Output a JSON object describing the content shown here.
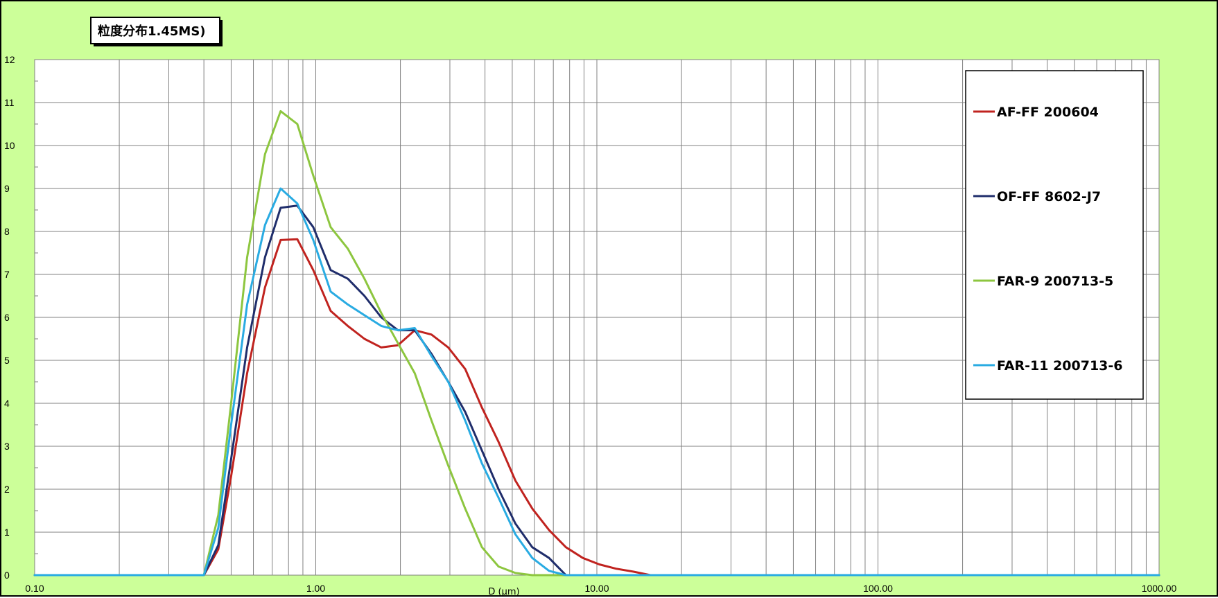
{
  "chart_data": {
    "type": "line",
    "title": "粒度分布1.45MS)",
    "xlabel": "D (μm)",
    "ylabel": "",
    "x_scale": "log",
    "xlim": [
      0.1,
      1000
    ],
    "ylim": [
      0,
      12
    ],
    "x_tick_labels": [
      "0.10",
      "1.00",
      "10.00",
      "100.00",
      "1000.00"
    ],
    "y_tick_labels": [
      "0",
      "1",
      "2",
      "3",
      "4",
      "5",
      "6",
      "7",
      "8",
      "9",
      "10",
      "11",
      "12"
    ],
    "grid": true,
    "legend_position": "top-right",
    "series": [
      {
        "name": "AF-FF 200604",
        "color": "#c0231f",
        "points": [
          [
            0.1,
            0
          ],
          [
            0.4,
            0
          ],
          [
            0.45,
            0.6
          ],
          [
            0.5,
            2.3
          ],
          [
            0.57,
            4.7
          ],
          [
            0.66,
            6.7
          ],
          [
            0.75,
            7.8
          ],
          [
            0.86,
            7.82
          ],
          [
            0.98,
            7.1
          ],
          [
            1.13,
            6.15
          ],
          [
            1.3,
            5.8
          ],
          [
            1.49,
            5.5
          ],
          [
            1.71,
            5.3
          ],
          [
            1.96,
            5.35
          ],
          [
            2.25,
            5.7
          ],
          [
            2.58,
            5.6
          ],
          [
            2.96,
            5.3
          ],
          [
            3.4,
            4.8
          ],
          [
            3.9,
            3.9
          ],
          [
            4.47,
            3.1
          ],
          [
            5.13,
            2.2
          ],
          [
            5.89,
            1.55
          ],
          [
            6.76,
            1.05
          ],
          [
            7.76,
            0.65
          ],
          [
            8.91,
            0.4
          ],
          [
            10.2,
            0.25
          ],
          [
            11.7,
            0.15
          ],
          [
            13.5,
            0.08
          ],
          [
            15.5,
            0
          ],
          [
            1000,
            0
          ]
        ]
      },
      {
        "name": "OF-FF  8602-J7",
        "color": "#1f2d6b",
        "points": [
          [
            0.1,
            0
          ],
          [
            0.4,
            0
          ],
          [
            0.45,
            0.7
          ],
          [
            0.5,
            2.7
          ],
          [
            0.57,
            5.3
          ],
          [
            0.66,
            7.4
          ],
          [
            0.75,
            8.55
          ],
          [
            0.86,
            8.6
          ],
          [
            0.98,
            8.1
          ],
          [
            1.13,
            7.1
          ],
          [
            1.3,
            6.9
          ],
          [
            1.49,
            6.5
          ],
          [
            1.71,
            6.0
          ],
          [
            1.96,
            5.7
          ],
          [
            2.25,
            5.7
          ],
          [
            2.58,
            5.15
          ],
          [
            2.96,
            4.5
          ],
          [
            3.4,
            3.8
          ],
          [
            3.9,
            2.9
          ],
          [
            4.47,
            2.0
          ],
          [
            5.13,
            1.2
          ],
          [
            5.89,
            0.65
          ],
          [
            6.76,
            0.4
          ],
          [
            7.76,
            0
          ],
          [
            1000,
            0
          ]
        ]
      },
      {
        "name": "FAR-9 200713-5",
        "color": "#8dc63f",
        "points": [
          [
            0.1,
            0
          ],
          [
            0.4,
            0
          ],
          [
            0.45,
            1.4
          ],
          [
            0.5,
            4.0
          ],
          [
            0.57,
            7.4
          ],
          [
            0.66,
            9.8
          ],
          [
            0.75,
            10.8
          ],
          [
            0.86,
            10.5
          ],
          [
            0.98,
            9.3
          ],
          [
            1.13,
            8.1
          ],
          [
            1.3,
            7.6
          ],
          [
            1.49,
            6.9
          ],
          [
            1.71,
            6.1
          ],
          [
            1.96,
            5.4
          ],
          [
            2.25,
            4.7
          ],
          [
            2.58,
            3.6
          ],
          [
            2.96,
            2.55
          ],
          [
            3.4,
            1.55
          ],
          [
            3.9,
            0.65
          ],
          [
            4.47,
            0.2
          ],
          [
            5.13,
            0.05
          ],
          [
            5.89,
            0
          ],
          [
            1000,
            0
          ]
        ]
      },
      {
        "name": "FAR-11 200713-6",
        "color": "#29abe2",
        "points": [
          [
            0.1,
            0
          ],
          [
            0.4,
            0
          ],
          [
            0.45,
            1.1
          ],
          [
            0.5,
            3.5
          ],
          [
            0.57,
            6.3
          ],
          [
            0.66,
            8.15
          ],
          [
            0.75,
            9.0
          ],
          [
            0.86,
            8.65
          ],
          [
            0.98,
            7.8
          ],
          [
            1.13,
            6.6
          ],
          [
            1.3,
            6.3
          ],
          [
            1.49,
            6.05
          ],
          [
            1.71,
            5.8
          ],
          [
            1.96,
            5.7
          ],
          [
            2.25,
            5.75
          ],
          [
            2.58,
            5.1
          ],
          [
            2.96,
            4.5
          ],
          [
            3.4,
            3.6
          ],
          [
            3.9,
            2.6
          ],
          [
            4.47,
            1.8
          ],
          [
            5.13,
            0.95
          ],
          [
            5.89,
            0.4
          ],
          [
            6.76,
            0.1
          ],
          [
            7.76,
            0
          ],
          [
            1000,
            0
          ]
        ]
      }
    ]
  }
}
